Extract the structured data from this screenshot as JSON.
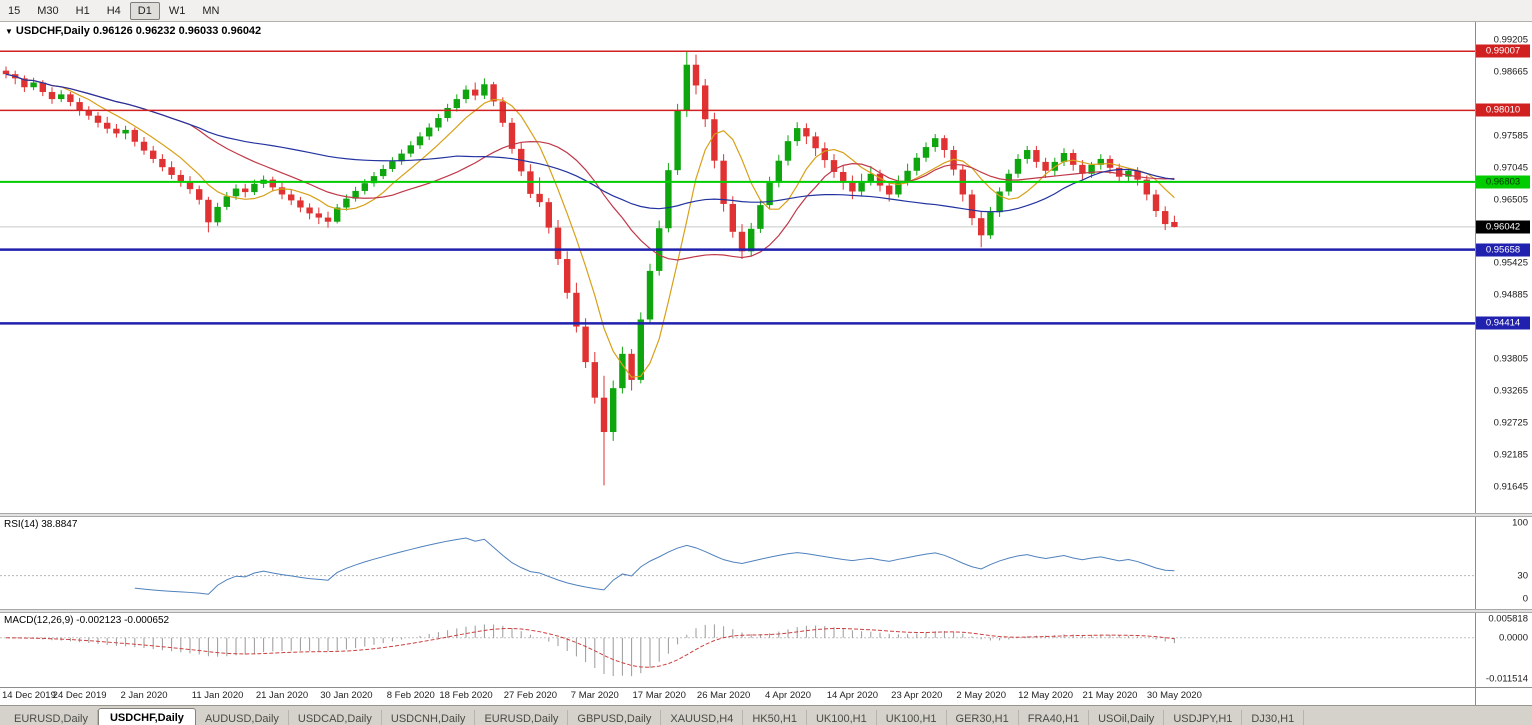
{
  "toolbar": {
    "timeframes": [
      {
        "label": "15",
        "active": false
      },
      {
        "label": "M30",
        "active": false
      },
      {
        "label": "H1",
        "active": false
      },
      {
        "label": "H4",
        "active": false
      },
      {
        "label": "D1",
        "active": true
      },
      {
        "label": "W1",
        "active": false
      },
      {
        "label": "MN",
        "active": false
      }
    ]
  },
  "chart": {
    "title_symbol": "USDCHF,Daily",
    "title_ohlc": "0.96126 0.96232 0.96033 0.96042"
  },
  "chart_data": {
    "type": "candlestick",
    "symbol": "USDCHF",
    "timeframe": "Daily",
    "title": "USDCHF,Daily 0.96126 0.96232 0.96033 0.96042",
    "colors": {
      "up": "#0ea50e",
      "down": "#e03232",
      "current_line": "#c9c9c9"
    },
    "price_axis": {
      "min": 0.915,
      "max": 0.994,
      "labels": [
        "0.99205",
        "0.98665",
        "0.97585",
        "0.97045",
        "0.96505",
        "0.95425",
        "0.94885",
        "0.93805",
        "0.93265",
        "0.92725",
        "0.92185",
        "0.91645"
      ]
    },
    "hlines": [
      {
        "price": 0.99007,
        "label": "0.99007",
        "color": "#d02020",
        "text_color": "#ffffff",
        "thickness": 1.5
      },
      {
        "price": 0.9801,
        "label": "0.98010",
        "color": "#d02020",
        "text_color": "#ffffff",
        "thickness": 1.5
      },
      {
        "price": 0.96803,
        "label": "0.96803",
        "color": "#00cc00",
        "text_color": "#003300",
        "thickness": 2
      },
      {
        "price": 0.95658,
        "label": "0.95658",
        "color": "#2121af",
        "text_color": "#ffffff",
        "thickness": 2.5
      },
      {
        "price": 0.94414,
        "label": "0.94414",
        "color": "#2121af",
        "text_color": "#ffffff",
        "thickness": 2.5
      }
    ],
    "current_price": {
      "price": 0.96042,
      "label": "0.96042",
      "color": "#000000",
      "text_color": "#ffffff"
    },
    "moving_averages": [
      {
        "period": 7,
        "color": "#d8a018"
      },
      {
        "period": 21,
        "color": "#c03848"
      },
      {
        "period": 50,
        "color": "#2233a0"
      }
    ],
    "x_labels": [
      {
        "i": 0,
        "t": "14 Dec 2019"
      },
      {
        "i": 8,
        "t": "24 Dec 2019"
      },
      {
        "i": 15,
        "t": "2 Jan 2020"
      },
      {
        "i": 23,
        "t": "11 Jan 2020"
      },
      {
        "i": 30,
        "t": "21 Jan 2020"
      },
      {
        "i": 37,
        "t": "30 Jan 2020"
      },
      {
        "i": 44,
        "t": "8 Feb 2020"
      },
      {
        "i": 50,
        "t": "18 Feb 2020"
      },
      {
        "i": 57,
        "t": "27 Feb 2020"
      },
      {
        "i": 64,
        "t": "7 Mar 2020"
      },
      {
        "i": 71,
        "t": "17 Mar 2020"
      },
      {
        "i": 78,
        "t": "26 Mar 2020"
      },
      {
        "i": 85,
        "t": "4 Apr 2020"
      },
      {
        "i": 92,
        "t": "14 Apr 2020"
      },
      {
        "i": 99,
        "t": "23 Apr 2020"
      },
      {
        "i": 106,
        "t": "2 May 2020"
      },
      {
        "i": 113,
        "t": "12 May 2020"
      },
      {
        "i": 120,
        "t": "21 May 2020"
      },
      {
        "i": 127,
        "t": "30 May 2020"
      }
    ],
    "ohlc": [
      [
        0.9868,
        0.9875,
        0.9855,
        0.9862
      ],
      [
        0.9862,
        0.9868,
        0.9845,
        0.9855
      ],
      [
        0.9855,
        0.986,
        0.9832,
        0.984
      ],
      [
        0.984,
        0.9856,
        0.9835,
        0.9848
      ],
      [
        0.9848,
        0.9852,
        0.9825,
        0.9832
      ],
      [
        0.9832,
        0.984,
        0.9812,
        0.982
      ],
      [
        0.982,
        0.9835,
        0.9815,
        0.9828
      ],
      [
        0.9828,
        0.9832,
        0.9808,
        0.9815
      ],
      [
        0.9815,
        0.9822,
        0.9792,
        0.98
      ],
      [
        0.98,
        0.9808,
        0.9785,
        0.9792
      ],
      [
        0.9792,
        0.9798,
        0.9772,
        0.978
      ],
      [
        0.978,
        0.979,
        0.9762,
        0.977
      ],
      [
        0.977,
        0.9778,
        0.9755,
        0.9762
      ],
      [
        0.9762,
        0.9775,
        0.9752,
        0.9768
      ],
      [
        0.9768,
        0.9772,
        0.974,
        0.9748
      ],
      [
        0.9748,
        0.9756,
        0.9726,
        0.9733
      ],
      [
        0.9733,
        0.9741,
        0.9712,
        0.9719
      ],
      [
        0.9719,
        0.9727,
        0.9698,
        0.9705
      ],
      [
        0.9705,
        0.9715,
        0.9685,
        0.9692
      ],
      [
        0.9692,
        0.97,
        0.9672,
        0.968
      ],
      [
        0.968,
        0.969,
        0.966,
        0.9668
      ],
      [
        0.9668,
        0.9674,
        0.9642,
        0.965
      ],
      [
        0.965,
        0.9655,
        0.9595,
        0.9612
      ],
      [
        0.9612,
        0.9645,
        0.9606,
        0.9638
      ],
      [
        0.9638,
        0.9663,
        0.9633,
        0.9656
      ],
      [
        0.9656,
        0.9676,
        0.965,
        0.9669
      ],
      [
        0.9669,
        0.9677,
        0.9654,
        0.9663
      ],
      [
        0.9663,
        0.9684,
        0.9658,
        0.9677
      ],
      [
        0.9677,
        0.9691,
        0.967,
        0.9684
      ],
      [
        0.9684,
        0.9689,
        0.9664,
        0.9671
      ],
      [
        0.9671,
        0.9679,
        0.9651,
        0.9659
      ],
      [
        0.9659,
        0.9667,
        0.9641,
        0.9649
      ],
      [
        0.9649,
        0.9655,
        0.9629,
        0.9637
      ],
      [
        0.9637,
        0.9644,
        0.9617,
        0.9627
      ],
      [
        0.9627,
        0.9637,
        0.9609,
        0.962
      ],
      [
        0.962,
        0.963,
        0.9603,
        0.9613
      ],
      [
        0.9613,
        0.9643,
        0.961,
        0.9637
      ],
      [
        0.9637,
        0.9659,
        0.9632,
        0.9652
      ],
      [
        0.9652,
        0.9672,
        0.9647,
        0.9665
      ],
      [
        0.9665,
        0.9685,
        0.9659,
        0.9678
      ],
      [
        0.9678,
        0.9697,
        0.9672,
        0.969
      ],
      [
        0.969,
        0.9709,
        0.9685,
        0.9702
      ],
      [
        0.9702,
        0.9722,
        0.9697,
        0.9715
      ],
      [
        0.9715,
        0.9735,
        0.9709,
        0.9728
      ],
      [
        0.9728,
        0.9749,
        0.9722,
        0.9742
      ],
      [
        0.9742,
        0.9764,
        0.9736,
        0.9757
      ],
      [
        0.9757,
        0.9779,
        0.9751,
        0.9772
      ],
      [
        0.9772,
        0.9795,
        0.9766,
        0.9788
      ],
      [
        0.9788,
        0.9812,
        0.9782,
        0.9805
      ],
      [
        0.9805,
        0.9828,
        0.9799,
        0.982
      ],
      [
        0.982,
        0.9843,
        0.9813,
        0.9836
      ],
      [
        0.9836,
        0.9848,
        0.9818,
        0.9826
      ],
      [
        0.9826,
        0.9855,
        0.982,
        0.9845
      ],
      [
        0.9845,
        0.9849,
        0.9808,
        0.9816
      ],
      [
        0.9816,
        0.9823,
        0.9773,
        0.978
      ],
      [
        0.978,
        0.9788,
        0.9728,
        0.9736
      ],
      [
        0.9736,
        0.9746,
        0.969,
        0.9698
      ],
      [
        0.9698,
        0.971,
        0.9653,
        0.966
      ],
      [
        0.966,
        0.9688,
        0.9638,
        0.9646
      ],
      [
        0.9646,
        0.9653,
        0.9593,
        0.9603
      ],
      [
        0.9603,
        0.9616,
        0.954,
        0.955
      ],
      [
        0.955,
        0.9563,
        0.9483,
        0.9493
      ],
      [
        0.9493,
        0.951,
        0.9426,
        0.9436
      ],
      [
        0.9436,
        0.945,
        0.9366,
        0.9376
      ],
      [
        0.9376,
        0.9393,
        0.9306,
        0.9316
      ],
      [
        0.9316,
        0.9353,
        0.9168,
        0.9258
      ],
      [
        0.9258,
        0.9345,
        0.9243,
        0.9332
      ],
      [
        0.9332,
        0.9402,
        0.9323,
        0.939
      ],
      [
        0.939,
        0.9398,
        0.9328,
        0.9346
      ],
      [
        0.9346,
        0.946,
        0.934,
        0.9448
      ],
      [
        0.9448,
        0.9542,
        0.944,
        0.953
      ],
      [
        0.953,
        0.9615,
        0.9522,
        0.9602
      ],
      [
        0.9602,
        0.9712,
        0.9595,
        0.97
      ],
      [
        0.97,
        0.9812,
        0.9692,
        0.98
      ],
      [
        0.98,
        0.99,
        0.979,
        0.9878
      ],
      [
        0.9878,
        0.9895,
        0.9828,
        0.9843
      ],
      [
        0.9843,
        0.9854,
        0.9773,
        0.9786
      ],
      [
        0.9786,
        0.9797,
        0.9703,
        0.9716
      ],
      [
        0.9716,
        0.9727,
        0.963,
        0.9643
      ],
      [
        0.9643,
        0.9656,
        0.9586,
        0.9596
      ],
      [
        0.9596,
        0.9609,
        0.955,
        0.9563
      ],
      [
        0.9563,
        0.9611,
        0.9556,
        0.9601
      ],
      [
        0.9601,
        0.9649,
        0.9594,
        0.9641
      ],
      [
        0.9641,
        0.9689,
        0.9634,
        0.9679
      ],
      [
        0.9679,
        0.9726,
        0.9671,
        0.9716
      ],
      [
        0.9716,
        0.9759,
        0.9708,
        0.9749
      ],
      [
        0.9749,
        0.9781,
        0.9741,
        0.9771
      ],
      [
        0.9771,
        0.9779,
        0.9744,
        0.9757
      ],
      [
        0.9757,
        0.9764,
        0.9724,
        0.9737
      ],
      [
        0.9737,
        0.9747,
        0.9704,
        0.9717
      ],
      [
        0.9717,
        0.9727,
        0.9687,
        0.9697
      ],
      [
        0.9697,
        0.9707,
        0.9667,
        0.9679
      ],
      [
        0.9679,
        0.9691,
        0.9651,
        0.9664
      ],
      [
        0.9664,
        0.9694,
        0.9657,
        0.9681
      ],
      [
        0.9681,
        0.9707,
        0.9674,
        0.9694
      ],
      [
        0.9694,
        0.9701,
        0.9664,
        0.9674
      ],
      [
        0.9674,
        0.9681,
        0.9647,
        0.9659
      ],
      [
        0.9659,
        0.9691,
        0.9654,
        0.9681
      ],
      [
        0.9681,
        0.9711,
        0.9674,
        0.9699
      ],
      [
        0.9699,
        0.9729,
        0.9691,
        0.9721
      ],
      [
        0.9721,
        0.9747,
        0.9714,
        0.9739
      ],
      [
        0.9739,
        0.9761,
        0.9731,
        0.9754
      ],
      [
        0.9754,
        0.9759,
        0.9721,
        0.9734
      ],
      [
        0.9734,
        0.9741,
        0.9691,
        0.9701
      ],
      [
        0.9701,
        0.9709,
        0.9647,
        0.9659
      ],
      [
        0.9659,
        0.9667,
        0.9607,
        0.9619
      ],
      [
        0.9619,
        0.9631,
        0.957,
        0.959
      ],
      [
        0.959,
        0.9638,
        0.9584,
        0.9629
      ],
      [
        0.9629,
        0.9671,
        0.9621,
        0.9664
      ],
      [
        0.9664,
        0.9701,
        0.9657,
        0.9694
      ],
      [
        0.9694,
        0.9727,
        0.9687,
        0.9719
      ],
      [
        0.9719,
        0.9741,
        0.9711,
        0.9734
      ],
      [
        0.9734,
        0.9741,
        0.9704,
        0.9714
      ],
      [
        0.9714,
        0.9721,
        0.9687,
        0.9699
      ],
      [
        0.9699,
        0.9721,
        0.9691,
        0.9714
      ],
      [
        0.9714,
        0.9737,
        0.9707,
        0.9729
      ],
      [
        0.9729,
        0.9735,
        0.9699,
        0.9709
      ],
      [
        0.9709,
        0.9717,
        0.9684,
        0.9694
      ],
      [
        0.9694,
        0.9714,
        0.9687,
        0.9709
      ],
      [
        0.9709,
        0.9727,
        0.9701,
        0.9719
      ],
      [
        0.9719,
        0.9725,
        0.9694,
        0.9704
      ],
      [
        0.9704,
        0.9711,
        0.9679,
        0.9689
      ],
      [
        0.9689,
        0.9704,
        0.9681,
        0.9699
      ],
      [
        0.9699,
        0.9705,
        0.9674,
        0.9684
      ],
      [
        0.9684,
        0.9691,
        0.9649,
        0.9659
      ],
      [
        0.9659,
        0.9667,
        0.9621,
        0.9631
      ],
      [
        0.9631,
        0.9639,
        0.9599,
        0.9609
      ],
      [
        0.96126,
        0.96232,
        0.96033,
        0.96042
      ]
    ],
    "rsi": {
      "title": "RSI(14)",
      "value": "38.8847",
      "period": 14,
      "range": [
        0,
        100
      ],
      "axis_labels": [
        "100",
        "30",
        "0"
      ],
      "axis_values": [
        100,
        30,
        0
      ],
      "levels": [
        30
      ],
      "color": "#4f81bd"
    },
    "macd": {
      "title": "MACD(12,26,9)",
      "values_text": "-0.002123 -0.000652",
      "fast": 12,
      "slow": 26,
      "signal_period": 9,
      "range": [
        -0.011514,
        0.005818
      ],
      "axis_labels": [
        "0.005818",
        "0.0000",
        "-0.011514"
      ],
      "axis_values": [
        0.005818,
        0,
        -0.011514
      ],
      "hist_color": "#9a9a9a",
      "signal_color": "#cc4040"
    }
  },
  "tabs": {
    "items": [
      {
        "label": "EURUSD,Daily",
        "active": false
      },
      {
        "label": "USDCHF,Daily",
        "active": true
      },
      {
        "label": "AUDUSD,Daily",
        "active": false
      },
      {
        "label": "USDCAD,Daily",
        "active": false
      },
      {
        "label": "USDCNH,Daily",
        "active": false
      },
      {
        "label": "EURUSD,Daily",
        "active": false
      },
      {
        "label": "GBPUSD,Daily",
        "active": false
      },
      {
        "label": "XAUUSD,H4",
        "active": false
      },
      {
        "label": "HK50,H1",
        "active": false
      },
      {
        "label": "UK100,H1",
        "active": false
      },
      {
        "label": "UK100,H1",
        "active": false
      },
      {
        "label": "GER30,H1",
        "active": false
      },
      {
        "label": "FRA40,H1",
        "active": false
      },
      {
        "label": "USOil,Daily",
        "active": false
      },
      {
        "label": "USDJPY,H1",
        "active": false
      },
      {
        "label": "DJ30,H1",
        "active": false
      }
    ]
  }
}
